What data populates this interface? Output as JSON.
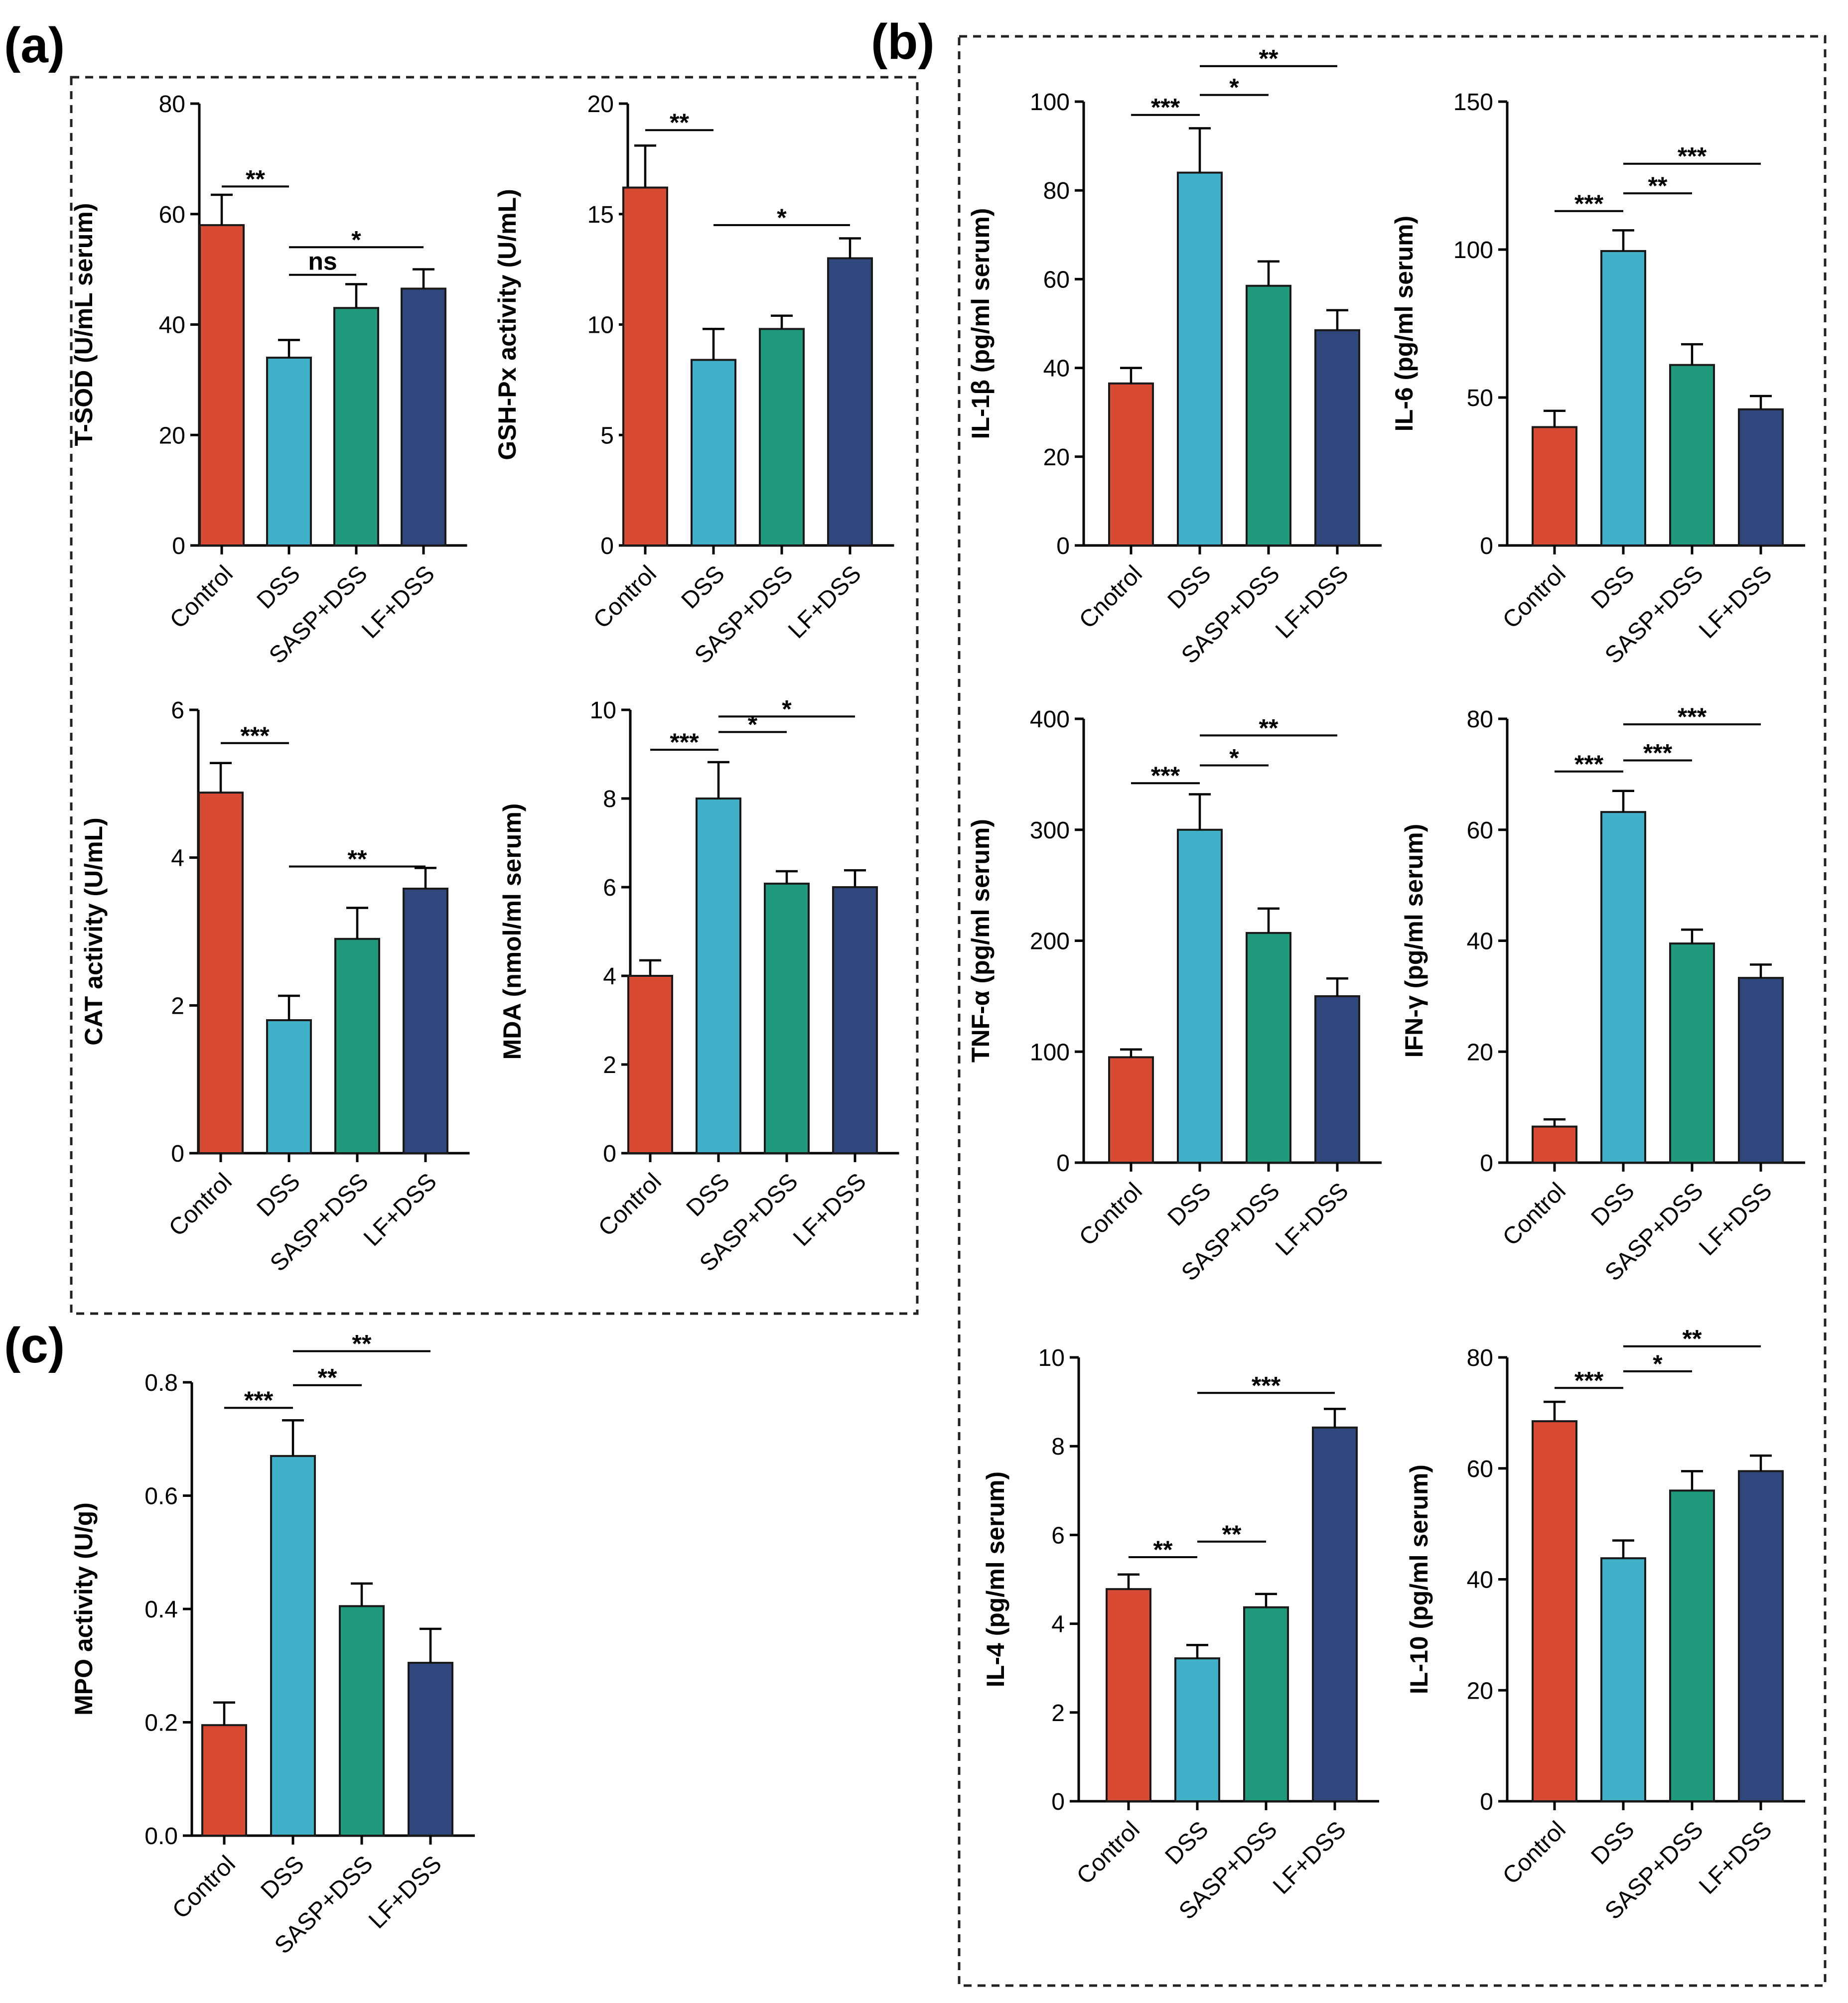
{
  "colors": {
    "Control": "#d94a34",
    "DSS": "#41b0c9",
    "SASP+DSS": "#1f9a7c",
    "LF+DSS": "#2f477c",
    "Cnotrol": "#d94a34"
  },
  "panels": [
    {
      "id": "a",
      "label": "(a)"
    },
    {
      "id": "b",
      "label": "(b)"
    },
    {
      "id": "c",
      "label": "(c)"
    }
  ],
  "chart_data": [
    {
      "id": "tsod",
      "panel": "a",
      "type": "bar",
      "ylabel": "T-SOD (U/mL serum)",
      "ylim": [
        0,
        80
      ],
      "ticks": [
        0,
        20,
        40,
        60,
        80
      ],
      "tick_decimals": 0,
      "categories": [
        "Control",
        "DSS",
        "SASP+DSS",
        "LF+DSS"
      ],
      "values": [
        58,
        34,
        43,
        46.5
      ],
      "errors": [
        5.5,
        3.2,
        4.3,
        3.5
      ],
      "sig": [
        {
          "from": 0,
          "to": 1,
          "label": "**",
          "y": 65
        },
        {
          "from": 1,
          "to": 2,
          "label": "ns",
          "y": 49
        },
        {
          "from": 1,
          "to": 3,
          "label": "*",
          "y": 54
        }
      ]
    },
    {
      "id": "gshpx",
      "panel": "a",
      "type": "bar",
      "ylabel": "GSH-Px activity (U/mL)",
      "ylim": [
        0,
        20
      ],
      "ticks": [
        0,
        5,
        10,
        15,
        20
      ],
      "tick_decimals": 0,
      "categories": [
        "Control",
        "DSS",
        "SASP+DSS",
        "LF+DSS"
      ],
      "values": [
        16.2,
        8.4,
        9.8,
        13
      ],
      "errors": [
        1.9,
        1.4,
        0.6,
        0.9
      ],
      "sig": [
        {
          "from": 0,
          "to": 1,
          "label": "**",
          "y": 18.8
        },
        {
          "from": 1,
          "to": 3,
          "label": "*",
          "y": 14.5
        }
      ]
    },
    {
      "id": "cat",
      "panel": "a",
      "type": "bar",
      "ylabel": "CAT activity (U/mL)",
      "ylim": [
        0,
        6
      ],
      "ticks": [
        0,
        2,
        4,
        6
      ],
      "tick_decimals": 0,
      "categories": [
        "Control",
        "DSS",
        "SASP+DSS",
        "LF+DSS"
      ],
      "values": [
        4.88,
        1.8,
        2.9,
        3.58
      ],
      "errors": [
        0.4,
        0.33,
        0.42,
        0.28
      ],
      "sig": [
        {
          "from": 0,
          "to": 1,
          "label": "***",
          "y": 5.55
        },
        {
          "from": 1,
          "to": 3,
          "label": "**",
          "y": 3.88
        }
      ]
    },
    {
      "id": "mda",
      "panel": "a",
      "type": "bar",
      "ylabel": "MDA (nmol/ml serum)",
      "ylim": [
        0,
        10
      ],
      "ticks": [
        0,
        2,
        4,
        6,
        8,
        10
      ],
      "tick_decimals": 0,
      "categories": [
        "Control",
        "DSS",
        "SASP+DSS",
        "LF+DSS"
      ],
      "values": [
        4,
        8,
        6.08,
        6
      ],
      "errors": [
        0.35,
        0.82,
        0.28,
        0.38
      ],
      "sig": [
        {
          "from": 0,
          "to": 1,
          "label": "***",
          "y": 9.1
        },
        {
          "from": 1,
          "to": 2,
          "label": "*",
          "y": 9.5
        },
        {
          "from": 1,
          "to": 3,
          "label": "*",
          "y": 9.85
        }
      ]
    },
    {
      "id": "il1b",
      "panel": "b",
      "type": "bar",
      "ylabel": "IL-1β (pg/ml serum)",
      "ylim": [
        0,
        100
      ],
      "ticks": [
        0,
        20,
        40,
        60,
        80,
        100
      ],
      "tick_decimals": 0,
      "categories": [
        "Cnotrol",
        "DSS",
        "SASP+DSS",
        "LF+DSS"
      ],
      "values": [
        36.5,
        84,
        58.5,
        48.5
      ],
      "errors": [
        3.5,
        10,
        5.5,
        4.5
      ],
      "sig": [
        {
          "from": 0,
          "to": 1,
          "label": "***",
          "y": 97
        },
        {
          "from": 1,
          "to": 2,
          "label": "*",
          "y": 101.5
        },
        {
          "from": 1,
          "to": 3,
          "label": "**",
          "y": 108
        }
      ]
    },
    {
      "id": "il6",
      "panel": "b",
      "type": "bar",
      "ylabel": "IL-6 (pg/ml serum)",
      "ylim": [
        0,
        150
      ],
      "ticks": [
        0,
        50,
        100,
        150
      ],
      "tick_decimals": 0,
      "categories": [
        "Control",
        "DSS",
        "SASP+DSS",
        "LF+DSS"
      ],
      "values": [
        40,
        99.5,
        61,
        46
      ],
      "errors": [
        5.5,
        7,
        7,
        4.5
      ],
      "sig": [
        {
          "from": 0,
          "to": 1,
          "label": "***",
          "y": 113
        },
        {
          "from": 1,
          "to": 2,
          "label": "**",
          "y": 119
        },
        {
          "from": 1,
          "to": 3,
          "label": "***",
          "y": 129
        }
      ]
    },
    {
      "id": "tnfa",
      "panel": "b",
      "type": "bar",
      "ylabel": "TNF-α (pg/ml serum)",
      "ylim": [
        0,
        400
      ],
      "ticks": [
        0,
        100,
        200,
        300,
        400
      ],
      "tick_decimals": 0,
      "categories": [
        "Control",
        "DSS",
        "SASP+DSS",
        "LF+DSS"
      ],
      "values": [
        95,
        300,
        207,
        150
      ],
      "errors": [
        7,
        32,
        22,
        16
      ],
      "sig": [
        {
          "from": 0,
          "to": 1,
          "label": "***",
          "y": 342
        },
        {
          "from": 1,
          "to": 2,
          "label": "*",
          "y": 358
        },
        {
          "from": 1,
          "to": 3,
          "label": "**",
          "y": 385
        }
      ]
    },
    {
      "id": "ifng",
      "panel": "b",
      "type": "bar",
      "ylabel": "IFN-γ (pg/ml serum)",
      "ylim": [
        0,
        80
      ],
      "ticks": [
        0,
        20,
        40,
        60,
        80
      ],
      "tick_decimals": 0,
      "categories": [
        "Control",
        "DSS",
        "SASP+DSS",
        "LF+DSS"
      ],
      "values": [
        6.5,
        63.2,
        39.5,
        33.3
      ],
      "errors": [
        1.3,
        3.8,
        2.5,
        2.4
      ],
      "sig": [
        {
          "from": 0,
          "to": 1,
          "label": "***",
          "y": 70.5
        },
        {
          "from": 1,
          "to": 2,
          "label": "***",
          "y": 72.5
        },
        {
          "from": 1,
          "to": 3,
          "label": "***",
          "y": 79
        }
      ]
    },
    {
      "id": "il4",
      "panel": "b",
      "type": "bar",
      "ylabel": "IL-4 (pg/ml serum)",
      "ylim": [
        0,
        10
      ],
      "ticks": [
        0,
        2,
        4,
        6,
        8,
        10
      ],
      "tick_decimals": 0,
      "categories": [
        "Control",
        "DSS",
        "SASP+DSS",
        "LF+DSS"
      ],
      "values": [
        4.78,
        3.22,
        4.37,
        8.42
      ],
      "errors": [
        0.33,
        0.3,
        0.3,
        0.42
      ],
      "sig": [
        {
          "from": 0,
          "to": 1,
          "label": "**",
          "y": 5.5
        },
        {
          "from": 1,
          "to": 2,
          "label": "**",
          "y": 5.85
        },
        {
          "from": 1,
          "to": 3,
          "label": "***",
          "y": 9.2
        }
      ]
    },
    {
      "id": "il10",
      "panel": "b",
      "type": "bar",
      "ylabel": "IL-10 (pg/ml serum)",
      "ylim": [
        0,
        80
      ],
      "ticks": [
        0,
        20,
        40,
        60,
        80
      ],
      "tick_decimals": 0,
      "categories": [
        "Control",
        "DSS",
        "SASP+DSS",
        "LF+DSS"
      ],
      "values": [
        68.5,
        43.8,
        56,
        59.5
      ],
      "errors": [
        3.5,
        3.2,
        3.5,
        2.8
      ],
      "sig": [
        {
          "from": 0,
          "to": 1,
          "label": "***",
          "y": 74.5
        },
        {
          "from": 1,
          "to": 2,
          "label": "*",
          "y": 77.5
        },
        {
          "from": 1,
          "to": 3,
          "label": "**",
          "y": 82
        }
      ]
    },
    {
      "id": "mpo",
      "panel": "c",
      "type": "bar",
      "ylabel": "MPO activity (U/g)",
      "ylim": [
        0,
        0.8
      ],
      "ticks": [
        0,
        0.2,
        0.4,
        0.6,
        0.8
      ],
      "tick_decimals": 1,
      "categories": [
        "Control",
        "DSS",
        "SASP+DSS",
        "LF+DSS"
      ],
      "values": [
        0.195,
        0.67,
        0.405,
        0.305
      ],
      "errors": [
        0.04,
        0.063,
        0.04,
        0.06
      ],
      "sig": [
        {
          "from": 0,
          "to": 1,
          "label": "***",
          "y": 0.755
        },
        {
          "from": 1,
          "to": 2,
          "label": "**",
          "y": 0.795
        },
        {
          "from": 1,
          "to": 3,
          "label": "**",
          "y": 0.855
        }
      ]
    }
  ]
}
